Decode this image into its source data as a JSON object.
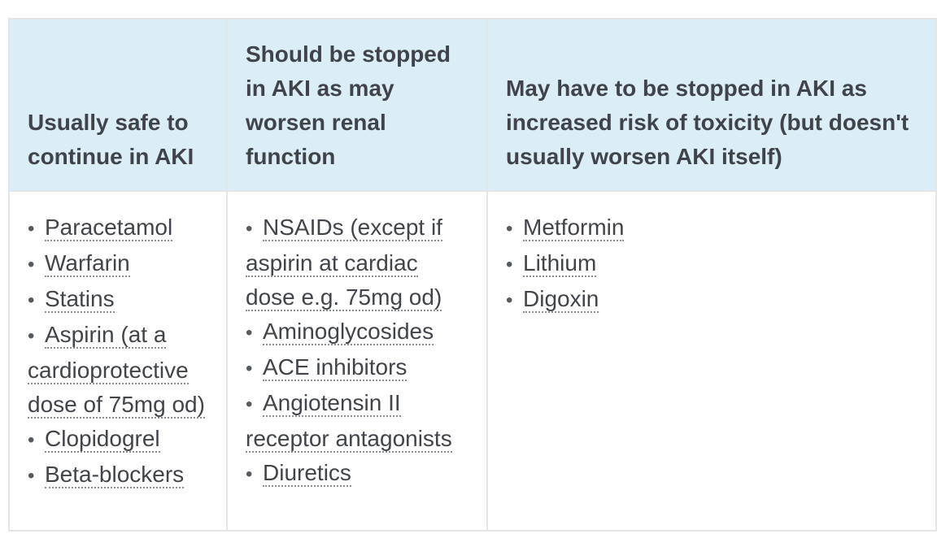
{
  "table": {
    "headers": [
      "Usually safe to continue in AKI",
      "Should be stopped in AKI as may worsen renal function",
      "May have to be stopped in AKI as increased risk of toxicity (but doesn't usually worsen AKI itself)"
    ],
    "columns": [
      {
        "items": [
          "Paracetamol",
          "Warfarin",
          "Statins",
          "Aspirin (at a cardioprotective dose of 75mg od)",
          "Clopidogrel",
          "Beta-blockers"
        ]
      },
      {
        "items": [
          "NSAIDs (except if aspirin at cardiac dose e.g. 75mg od)",
          "Aminoglycosides",
          "ACE inhibitors",
          "Angiotensin II receptor antagonists",
          "Diuretics"
        ]
      },
      {
        "items": [
          "Metformin",
          "Lithium",
          "Digoxin"
        ]
      }
    ],
    "bullet": "•"
  },
  "colors": {
    "header_background": "#dbedf6",
    "border": "#e3e6e9",
    "text": "#41454b"
  }
}
